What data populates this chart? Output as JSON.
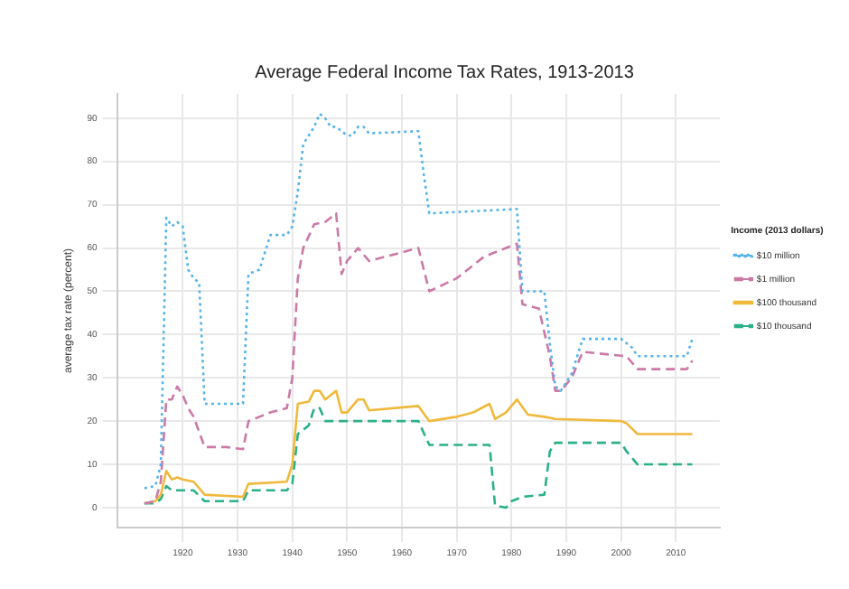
{
  "chart_data": {
    "type": "line",
    "title": "Average Federal Income Tax Rates, 1913-2013",
    "ylabel": "average tax rate (percent)",
    "legend_title": "Income (2013 dollars)",
    "legend": "right",
    "grid": true,
    "marker": "none",
    "xlim": [
      1908,
      2018
    ],
    "xticks": [
      1920,
      1930,
      1940,
      1950,
      1960,
      1970,
      1980,
      1990,
      2000,
      2010
    ],
    "ylim": [
      -4.6,
      95.6
    ],
    "yticks": [
      0,
      10,
      20,
      30,
      40,
      50,
      60,
      70,
      80,
      90
    ],
    "series": [
      {
        "name": "$10 million",
        "color": "#56b4e9",
        "line_style": "dotted",
        "x": [
          1913,
          1915,
          1916,
          1917,
          1918,
          1919,
          1920,
          1921,
          1922,
          1923,
          1924,
          1931,
          1932,
          1934,
          1936,
          1939,
          1940,
          1941,
          1942,
          1944,
          1945,
          1946,
          1947,
          1948,
          1950,
          1951,
          1952,
          1953,
          1954,
          1963,
          1964,
          1965,
          1981,
          1982,
          1986,
          1987,
          1988,
          1989,
          1991,
          1993,
          2000,
          2002,
          2003,
          2012,
          2013
        ],
        "values": [
          4.5,
          5,
          10,
          67,
          65,
          66,
          65,
          55,
          53,
          52,
          24,
          24,
          54,
          55,
          63,
          63,
          65,
          73,
          84,
          88,
          91,
          90,
          88,
          88,
          86,
          86,
          88,
          88,
          86.5,
          87,
          77,
          68,
          69,
          50,
          50,
          38,
          28,
          27,
          31,
          39,
          39,
          37,
          35,
          35,
          39
        ]
      },
      {
        "name": "$1 million",
        "color": "#cc79a7",
        "line_style": "dashed",
        "x": [
          1913,
          1915,
          1916,
          1917,
          1918,
          1919,
          1920,
          1921,
          1922,
          1924,
          1928,
          1931,
          1932,
          1934,
          1936,
          1939,
          1940,
          1941,
          1942,
          1944,
          1946,
          1948,
          1949,
          1950,
          1952,
          1954,
          1963,
          1964,
          1965,
          1970,
          1975,
          1979,
          1981,
          1982,
          1985,
          1987,
          1988,
          1989,
          1991,
          1993,
          2001,
          2003,
          2012,
          2013
        ],
        "values": [
          1,
          1.5,
          6,
          25,
          25,
          28,
          26,
          23,
          21,
          14,
          14,
          13.5,
          20,
          21,
          22,
          23,
          30,
          53,
          60,
          65.5,
          66,
          68,
          54,
          57,
          60,
          57,
          60,
          55,
          50,
          53,
          58,
          60,
          61,
          47,
          46,
          35,
          27,
          27,
          30,
          36,
          35,
          32,
          32,
          34
        ]
      },
      {
        "name": "$100 thousand",
        "color": "#f0b93c",
        "line_style": "solid",
        "x": [
          1913,
          1915,
          1916,
          1917,
          1918,
          1919,
          1920,
          1922,
          1924,
          1931,
          1932,
          1939,
          1940,
          1941,
          1943,
          1944,
          1945,
          1946,
          1948,
          1949,
          1950,
          1952,
          1953,
          1954,
          1963,
          1965,
          1970,
          1973,
          1976,
          1977,
          1979,
          1981,
          1983,
          1986,
          1988,
          2000,
          2001,
          2003,
          2013
        ],
        "values": [
          1,
          1.5,
          3,
          8.5,
          6.5,
          7,
          6.5,
          6,
          3,
          2.5,
          5.5,
          6,
          10,
          24,
          24.5,
          27,
          27,
          25,
          27,
          22,
          22,
          25,
          25,
          22.5,
          23.5,
          20,
          21,
          22,
          24,
          20.5,
          22,
          25,
          21.5,
          21,
          20.5,
          20,
          19.5,
          17,
          17
        ]
      },
      {
        "name": "$10 thousand",
        "color": "#2bb08a",
        "line_style": "dashed",
        "x": [
          1913,
          1915,
          1916,
          1917,
          1918,
          1922,
          1924,
          1931,
          1932,
          1939,
          1940,
          1941,
          1943,
          1944,
          1945,
          1946,
          1963,
          1965,
          1976,
          1977,
          1979,
          1980,
          1982,
          1986,
          1987,
          1988,
          2000,
          2001,
          2003,
          2013
        ],
        "values": [
          1,
          1,
          2,
          5,
          4,
          4,
          1.5,
          1.5,
          4,
          4,
          5.5,
          17,
          19,
          23,
          23,
          20,
          20,
          14.5,
          14.5,
          0.5,
          0,
          1.5,
          2.5,
          3,
          13,
          15,
          15,
          13,
          10,
          10
        ]
      }
    ]
  }
}
